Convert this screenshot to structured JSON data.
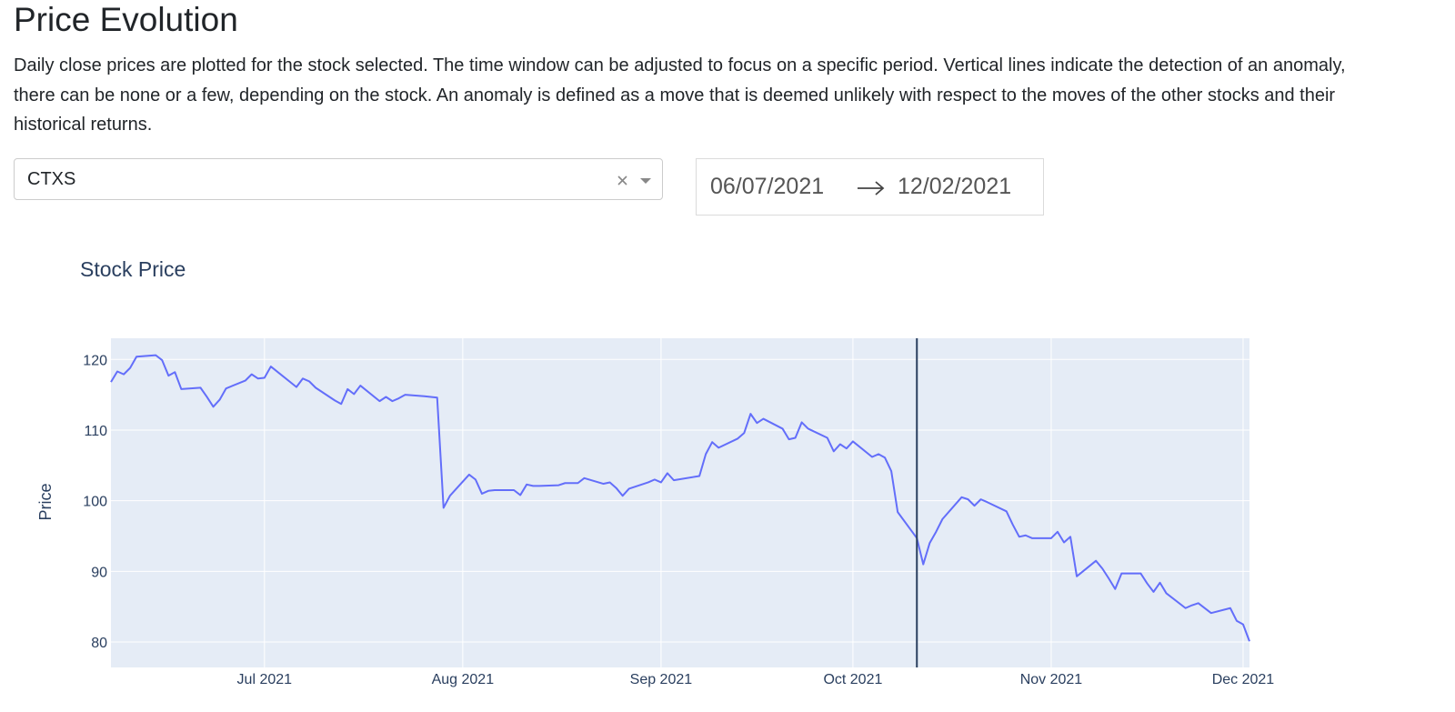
{
  "header": {
    "title": "Price Evolution",
    "description": "Daily close prices are plotted for the stock selected. The time window can be adjusted to focus on a specific period. Vertical lines indicate the detection of an anomaly, there can be none or a few, depending on the stock. An anomaly is defined as a move that is deemed unlikely with respect to the moves of the other stocks and their historical returns."
  },
  "controls": {
    "stock": "CTXS",
    "start_date": "06/07/2021",
    "end_date": "12/02/2021"
  },
  "chart_data": {
    "type": "line",
    "title": "Stock Price",
    "y_label": "Price",
    "color": "#636efa",
    "grid": true,
    "x": [
      "2021-06-07",
      "2021-06-08",
      "2021-06-09",
      "2021-06-10",
      "2021-06-11",
      "2021-06-14",
      "2021-06-15",
      "2021-06-16",
      "2021-06-17",
      "2021-06-18",
      "2021-06-21",
      "2021-06-22",
      "2021-06-23",
      "2021-06-24",
      "2021-06-25",
      "2021-06-28",
      "2021-06-29",
      "2021-06-30",
      "2021-07-01",
      "2021-07-02",
      "2021-07-06",
      "2021-07-07",
      "2021-07-08",
      "2021-07-09",
      "2021-07-12",
      "2021-07-13",
      "2021-07-14",
      "2021-07-15",
      "2021-07-16",
      "2021-07-19",
      "2021-07-20",
      "2021-07-21",
      "2021-07-22",
      "2021-07-23",
      "2021-07-26",
      "2021-07-27",
      "2021-07-28",
      "2021-07-29",
      "2021-07-30",
      "2021-08-02",
      "2021-08-03",
      "2021-08-04",
      "2021-08-05",
      "2021-08-06",
      "2021-08-09",
      "2021-08-10",
      "2021-08-11",
      "2021-08-12",
      "2021-08-13",
      "2021-08-16",
      "2021-08-17",
      "2021-08-18",
      "2021-08-19",
      "2021-08-20",
      "2021-08-23",
      "2021-08-24",
      "2021-08-25",
      "2021-08-26",
      "2021-08-27",
      "2021-08-30",
      "2021-08-31",
      "2021-09-01",
      "2021-09-02",
      "2021-09-03",
      "2021-09-07",
      "2021-09-08",
      "2021-09-09",
      "2021-09-10",
      "2021-09-13",
      "2021-09-14",
      "2021-09-15",
      "2021-09-16",
      "2021-09-17",
      "2021-09-20",
      "2021-09-21",
      "2021-09-22",
      "2021-09-23",
      "2021-09-24",
      "2021-09-27",
      "2021-09-28",
      "2021-09-29",
      "2021-09-30",
      "2021-10-01",
      "2021-10-04",
      "2021-10-05",
      "2021-10-06",
      "2021-10-07",
      "2021-10-08",
      "2021-10-11",
      "2021-10-12",
      "2021-10-13",
      "2021-10-14",
      "2021-10-15",
      "2021-10-18",
      "2021-10-19",
      "2021-10-20",
      "2021-10-21",
      "2021-10-22",
      "2021-10-25",
      "2021-10-26",
      "2021-10-27",
      "2021-10-28",
      "2021-10-29",
      "2021-11-01",
      "2021-11-02",
      "2021-11-03",
      "2021-11-04",
      "2021-11-05",
      "2021-11-08",
      "2021-11-09",
      "2021-11-10",
      "2021-11-11",
      "2021-11-12",
      "2021-11-15",
      "2021-11-16",
      "2021-11-17",
      "2021-11-18",
      "2021-11-19",
      "2021-11-22",
      "2021-11-23",
      "2021-11-24",
      "2021-11-26",
      "2021-11-29",
      "2021-11-30",
      "2021-12-01",
      "2021-12-02"
    ],
    "values": [
      116.8,
      118.3,
      117.9,
      118.8,
      120.4,
      120.6,
      119.9,
      117.7,
      118.2,
      115.8,
      116.0,
      114.7,
      113.3,
      114.3,
      115.9,
      117.0,
      117.9,
      117.3,
      117.4,
      119.0,
      116.1,
      117.3,
      116.9,
      116.0,
      114.2,
      113.7,
      115.8,
      115.1,
      116.3,
      114.1,
      114.7,
      114.1,
      114.5,
      115.0,
      114.8,
      114.7,
      114.6,
      99.0,
      100.7,
      103.7,
      103.0,
      101.0,
      101.4,
      101.5,
      101.5,
      100.8,
      102.3,
      102.1,
      102.1,
      102.2,
      102.5,
      102.5,
      102.5,
      103.2,
      102.4,
      102.6,
      101.8,
      100.7,
      101.7,
      102.6,
      103.0,
      102.6,
      103.9,
      102.9,
      103.5,
      106.6,
      108.3,
      107.5,
      108.8,
      109.6,
      112.3,
      111.0,
      111.6,
      110.2,
      108.7,
      108.9,
      111.1,
      110.2,
      108.9,
      107.0,
      108.0,
      107.4,
      108.4,
      106.2,
      106.6,
      106.1,
      104.2,
      98.4,
      94.7,
      91.0,
      94.0,
      95.6,
      97.4,
      100.5,
      100.2,
      99.3,
      100.2,
      99.8,
      98.5,
      96.6,
      94.9,
      95.1,
      94.7,
      94.7,
      95.6,
      94.1,
      94.9,
      89.3,
      91.5,
      90.4,
      89.0,
      87.5,
      89.7,
      89.7,
      88.3,
      87.1,
      88.4,
      86.9,
      84.8,
      85.2,
      85.5,
      84.1,
      84.8,
      83.0,
      82.5,
      80.1
    ],
    "anomalies": [
      "2021-10-11"
    ],
    "anomaly_color": "#2a3f5f",
    "xlim": [
      "2021-06-07",
      "2021-12-02"
    ],
    "xticks": [
      {
        "value": "2021-07-01",
        "label": "Jul 2021"
      },
      {
        "value": "2021-08-01",
        "label": "Aug 2021"
      },
      {
        "value": "2021-09-01",
        "label": "Sep 2021"
      },
      {
        "value": "2021-10-01",
        "label": "Oct 2021"
      },
      {
        "value": "2021-11-01",
        "label": "Nov 2021"
      },
      {
        "value": "2021-12-01",
        "label": "Dec 2021"
      }
    ],
    "ylim": [
      76.4,
      123
    ],
    "yticks": [
      80,
      90,
      100,
      110,
      120
    ]
  }
}
